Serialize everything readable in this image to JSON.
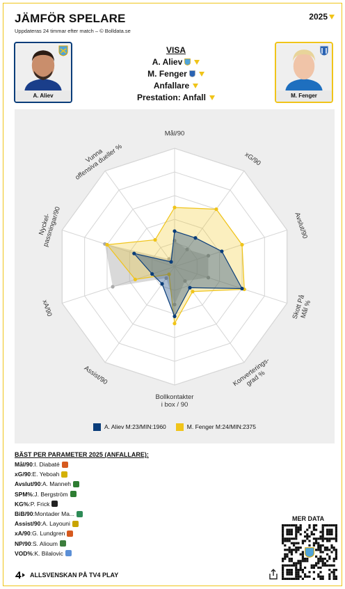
{
  "header": {
    "title": "JÄMFÖR SPELARE",
    "subtitle": "Uppdateras 24 timmar efter match – © Bolldata.se",
    "season": "2025"
  },
  "players": {
    "left": {
      "name": "A. Aliev",
      "color": "#0a3d7a",
      "club_icon": "club-crest-icon"
    },
    "right": {
      "name": "M. Fenger",
      "color": "#f0c419",
      "club_icon": "club-crest-icon"
    }
  },
  "visa": {
    "heading": "VISA",
    "player1": "A. Aliev",
    "player2": "M. Fenger",
    "position": "Anfallare",
    "performance": "Prestation: Anfall"
  },
  "chart_data": {
    "type": "radar",
    "axes": [
      "Mål/90",
      "xG/90",
      "Avslut/90",
      "Skott På Mål %",
      "Konverterings-grad %",
      "Bollkontakter i box / 90",
      "Assist/90",
      "xA/90",
      "Nyckel-passningar/90",
      "Vunna offensiva dueller %"
    ],
    "range": [
      0,
      100
    ],
    "rings": 5,
    "series": [
      {
        "name": "A. Aliev M:23/MIN:1960",
        "color": "#0a3d7a",
        "values": [
          30,
          30,
          42,
          60,
          22,
          42,
          18,
          20,
          36,
          5
        ]
      },
      {
        "name": "M. Fenger M:24/MIN:2375",
        "color": "#f0c419",
        "values": [
          50,
          60,
          60,
          62,
          26,
          48,
          8,
          35,
          60,
          28
        ]
      },
      {
        "name": "",
        "color": "#aaaaaa",
        "values": [
          22,
          18,
          30,
          30,
          15,
          32,
          12,
          55,
          62,
          8
        ]
      }
    ]
  },
  "best": {
    "heading": "BÄST PER PARAMETER 2025 (ANFALLARE):",
    "rows": [
      {
        "label": "Mål/90",
        "player": "I. Diabaté",
        "club_color": "#d65a1f"
      },
      {
        "label": "xG/90",
        "player": "E. Yeboah",
        "club_color": "#d4b106"
      },
      {
        "label": "Avslut/90",
        "player": "A. Manneh",
        "club_color": "#2e7d32"
      },
      {
        "label": "SPM%",
        "player": "J. Bergström",
        "club_color": "#2e7d32"
      },
      {
        "label": "KG%",
        "player": "P. Frick",
        "club_color": "#222222"
      },
      {
        "label": "BiB/90",
        "player": "Montader Ma...",
        "club_color": "#2e8b57"
      },
      {
        "label": "Assist/90",
        "player": "A. Layouni",
        "club_color": "#c8a400"
      },
      {
        "label": "xA/90",
        "player": "G. Lundgren",
        "club_color": "#d65a1f"
      },
      {
        "label": "NP/90",
        "player": "S. Alioum",
        "club_color": "#3c7d3c"
      },
      {
        "label": "VOD%",
        "player": "K. Bilalovic",
        "club_color": "#5b8fd6"
      }
    ]
  },
  "more": {
    "label": "MER DATA"
  },
  "footer": {
    "label": "ALLSVENSKAN PÅ TV4 PLAY"
  }
}
